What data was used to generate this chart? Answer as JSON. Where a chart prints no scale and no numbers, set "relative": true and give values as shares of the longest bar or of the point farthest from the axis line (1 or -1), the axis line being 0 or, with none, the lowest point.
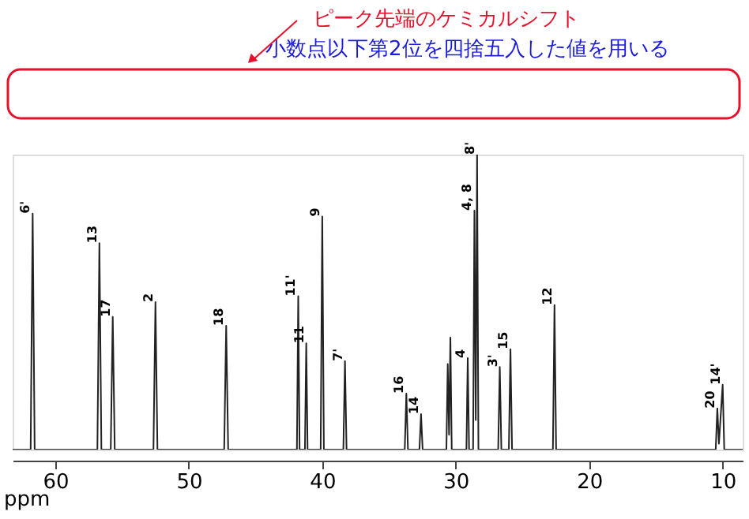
{
  "chart_data": {
    "type": "line",
    "relative": true,
    "xlabel": "ppm",
    "x": [
      63.2,
      61.85,
      61.7,
      61.55,
      56.85,
      56.7,
      56.55,
      55.85,
      55.7,
      55.55,
      52.65,
      52.5,
      52.35,
      47.35,
      47.2,
      47.05,
      41.9,
      41.8,
      41.7,
      41.3,
      41.2,
      41.1,
      40.12,
      40.0,
      39.88,
      38.42,
      38.3,
      38.18,
      33.82,
      33.7,
      33.58,
      32.72,
      32.6,
      32.48,
      30.7,
      30.6,
      30.5,
      30.4,
      30.3,
      29.2,
      29.1,
      29.0,
      28.7,
      28.6,
      28.5,
      28.4,
      28.3,
      26.82,
      26.7,
      26.58,
      26.02,
      25.9,
      25.78,
      22.72,
      22.6,
      22.48,
      10.52,
      10.4,
      10.28,
      10.0,
      9.88,
      8.5
    ],
    "series": [
      {
        "color": "#222222",
        "values": [
          0,
          0,
          0.8,
          0,
          0,
          0.7,
          0,
          0,
          0.45,
          0,
          0,
          0.5,
          0,
          0,
          0.42,
          0,
          0,
          0.52,
          0,
          0,
          0.36,
          0,
          0,
          0.79,
          0,
          0,
          0.3,
          0,
          0,
          0.19,
          0,
          0,
          0.12,
          0,
          0,
          0.29,
          0.05,
          0.38,
          0,
          0,
          0.31,
          0,
          0,
          0.81,
          0.1,
          1.0,
          0,
          0,
          0.28,
          0,
          0,
          0.34,
          0,
          0,
          0.49,
          0,
          0,
          0.14,
          0.02,
          0.22,
          0,
          0
        ]
      }
    ],
    "xlim": [
      63.2,
      8.5
    ],
    "xticks": [
      60,
      50,
      40,
      30,
      20,
      10
    ],
    "grid": false,
    "line_style": "solid",
    "marker": "none",
    "annotations": [
      "ピーク先端のケミカルシフト",
      "小数点以下第2位を四捨五入した値を用いる",
      {
        "text": "6'",
        "x": 61.7,
        "y": 0.8
      },
      {
        "text": "13",
        "x": 56.7,
        "y": 0.7
      },
      {
        "text": "17",
        "x": 55.7,
        "y": 0.45
      },
      {
        "text": "2",
        "x": 52.5,
        "y": 0.5
      },
      {
        "text": "18",
        "x": 47.2,
        "y": 0.42
      },
      {
        "text": "11'",
        "x": 41.8,
        "y": 0.52
      },
      {
        "text": "11",
        "x": 41.2,
        "y": 0.36
      },
      {
        "text": "9",
        "x": 40.0,
        "y": 0.79
      },
      {
        "text": "7'",
        "x": 38.3,
        "y": 0.3
      },
      {
        "text": "16",
        "x": 33.7,
        "y": 0.19
      },
      {
        "text": "14",
        "x": 32.6,
        "y": 0.12
      },
      {
        "text": "4",
        "x": 29.1,
        "y": 0.31
      },
      {
        "text": "4, 8",
        "x": 28.6,
        "y": 0.81
      },
      {
        "text": "8'",
        "x": 28.4,
        "y": 1.0
      },
      {
        "text": "3'",
        "x": 26.7,
        "y": 0.28
      },
      {
        "text": "15",
        "x": 25.9,
        "y": 0.34
      },
      {
        "text": "12",
        "x": 22.6,
        "y": 0.49
      },
      {
        "text": "20",
        "x": 10.4,
        "y": 0.14
      },
      {
        "text": "14'",
        "x": 10.0,
        "y": 0.22
      }
    ]
  }
}
